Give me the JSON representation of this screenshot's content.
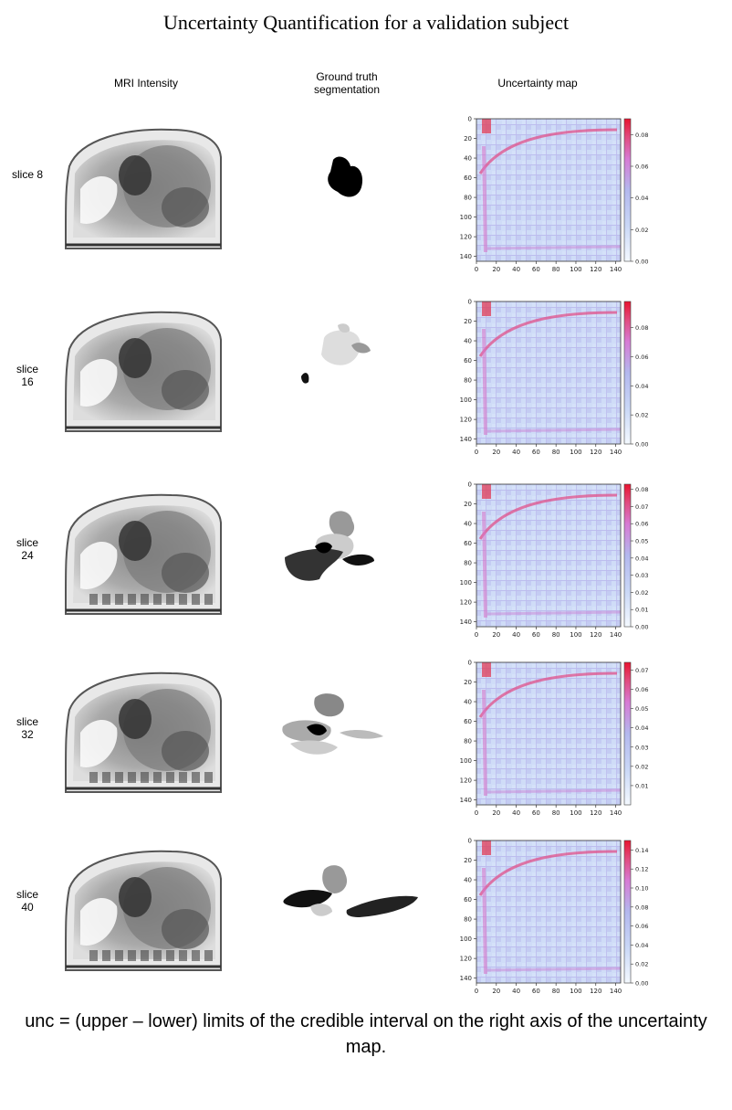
{
  "title": "Uncertainty Quantification for a validation subject",
  "columns": {
    "mri": "MRI Intensity",
    "gt_line1": "Ground truth",
    "gt_line2": "segmentation",
    "unc": "Uncertainty map"
  },
  "rows": [
    {
      "label_line1": "slice 8",
      "label_line2": "",
      "colorbar_ticks": [
        "0.08",
        "0.06",
        "0.04",
        "0.02",
        "0.00"
      ],
      "colorbar_max": 0.09
    },
    {
      "label_line1": "slice",
      "label_line2": "16",
      "colorbar_ticks": [
        "0.08",
        "0.06",
        "0.04",
        "0.02",
        "0.00"
      ],
      "colorbar_max": 0.098
    },
    {
      "label_line1": "slice",
      "label_line2": "24",
      "colorbar_ticks": [
        "0.08",
        "0.07",
        "0.06",
        "0.05",
        "0.04",
        "0.03",
        "0.02",
        "0.01",
        "0.00"
      ],
      "colorbar_max": 0.083
    },
    {
      "label_line1": "slice",
      "label_line2": "32",
      "colorbar_ticks": [
        "0.07",
        "0.06",
        "0.05",
        "0.04",
        "0.03",
        "0.02",
        "0.01"
      ],
      "colorbar_max": 0.074
    },
    {
      "label_line1": "slice",
      "label_line2": "40",
      "colorbar_ticks": [
        "0.14",
        "0.12",
        "0.10",
        "0.08",
        "0.06",
        "0.04",
        "0.02",
        "0.00"
      ],
      "colorbar_max": 0.15
    }
  ],
  "axis_ticks": [
    "0",
    "20",
    "40",
    "60",
    "80",
    "100",
    "120",
    "140"
  ],
  "caption": "unc = (upper – lower) limits of the credible interval on the right axis of the uncertainty map.",
  "colors": {
    "cmap_low": "#f4f9ff",
    "cmap_mid": "#b9c9f4",
    "cmap_pink": "#d96ad0",
    "cmap_high": "#e8142f"
  }
}
